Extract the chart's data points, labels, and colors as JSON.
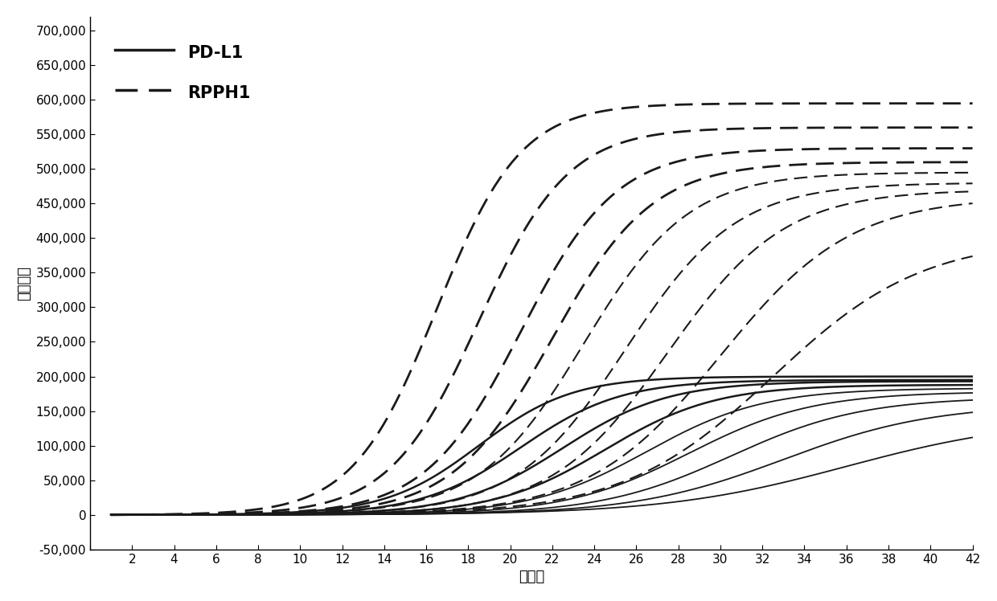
{
  "title": "",
  "xlabel": "循环数",
  "ylabel": "荧光强度",
  "xlim": [
    0,
    42
  ],
  "ylim": [
    -50000,
    720000
  ],
  "xticks": [
    0,
    2,
    4,
    6,
    8,
    10,
    12,
    14,
    16,
    18,
    20,
    22,
    24,
    26,
    28,
    30,
    32,
    34,
    36,
    38,
    40,
    42
  ],
  "yticks": [
    -50000,
    0,
    50000,
    100000,
    150000,
    200000,
    250000,
    300000,
    350000,
    400000,
    450000,
    500000,
    550000,
    600000,
    650000,
    700000
  ],
  "ytick_labels": [
    "-50,000",
    "0",
    "50,000",
    "100,000",
    "150,000",
    "200,000",
    "250,000",
    "300,000",
    "350,000",
    "400,000",
    "450,000",
    "500,000",
    "550,000",
    "600,000",
    "650,000",
    "700,000"
  ],
  "line_color": "#1a1a1a",
  "background_color": "#ffffff",
  "pdl1_curves": [
    {
      "ct": 18.5,
      "plateau": 200000,
      "k": 0.45
    },
    {
      "ct": 20.5,
      "plateau": 195000,
      "k": 0.42
    },
    {
      "ct": 22.5,
      "plateau": 193000,
      "k": 0.4
    },
    {
      "ct": 24.5,
      "plateau": 188000,
      "k": 0.38
    },
    {
      "ct": 26.5,
      "plateau": 183000,
      "k": 0.36
    },
    {
      "ct": 28.5,
      "plateau": 178000,
      "k": 0.34
    },
    {
      "ct": 30.5,
      "plateau": 170000,
      "k": 0.32
    },
    {
      "ct": 33.0,
      "plateau": 160000,
      "k": 0.28
    },
    {
      "ct": 36.0,
      "plateau": 140000,
      "k": 0.23
    }
  ],
  "rpph1_curves": [
    {
      "ct": 16.5,
      "plateau": 595000,
      "k": 0.5
    },
    {
      "ct": 18.5,
      "plateau": 560000,
      "k": 0.47
    },
    {
      "ct": 20.5,
      "plateau": 530000,
      "k": 0.44
    },
    {
      "ct": 22.0,
      "plateau": 510000,
      "k": 0.42
    },
    {
      "ct": 23.5,
      "plateau": 495000,
      "k": 0.4
    },
    {
      "ct": 25.5,
      "plateau": 480000,
      "k": 0.38
    },
    {
      "ct": 27.5,
      "plateau": 470000,
      "k": 0.36
    },
    {
      "ct": 30.0,
      "plateau": 460000,
      "k": 0.32
    },
    {
      "ct": 32.5,
      "plateau": 400000,
      "k": 0.28
    }
  ],
  "legend_solid_label": "PD-L1",
  "legend_dashed_label": "RPPH1",
  "legend_fontsize": 15,
  "axis_label_fontsize": 13,
  "tick_fontsize": 11
}
